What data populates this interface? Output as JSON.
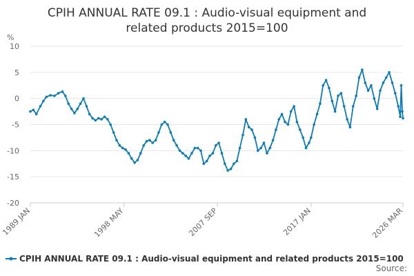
{
  "chart_data": {
    "type": "line",
    "title_lines": [
      "CPIH ANNUAL RATE 09.1 : Audio-visual equipment and",
      "related products 2015=100"
    ],
    "ylabel": "%",
    "ylim": [
      -20,
      10
    ],
    "y_ticks": [
      10,
      5,
      0,
      -5,
      -10,
      -15,
      -20
    ],
    "x_range": [
      "1989 JAN",
      "2026 MAR"
    ],
    "x_ticks": [
      {
        "label": "1989 JAN",
        "year": 1989.0
      },
      {
        "label": "1998 MAY",
        "year": 1998.33
      },
      {
        "label": "2007 SEP",
        "year": 2007.67
      },
      {
        "label": "2017 JAN",
        "year": 2017.0
      },
      {
        "label": "2026 MAR",
        "year": 2026.17
      }
    ],
    "grid": true,
    "legend_position": "bottom",
    "series": [
      {
        "name": "CPIH ANNUAL RATE 09.1 : Audio-visual equipment and related products 2015=100",
        "color": "#0b7cb8",
        "points": [
          [
            1989.0,
            -2.5
          ],
          [
            1989.3,
            -2.2
          ],
          [
            1989.6,
            -3.0
          ],
          [
            1990.0,
            -1.5
          ],
          [
            1990.3,
            -0.5
          ],
          [
            1990.6,
            0.3
          ],
          [
            1991.0,
            0.6
          ],
          [
            1991.4,
            0.5
          ],
          [
            1991.8,
            1.0
          ],
          [
            1992.2,
            1.3
          ],
          [
            1992.5,
            0.5
          ],
          [
            1992.8,
            -1.0
          ],
          [
            1993.1,
            -2.0
          ],
          [
            1993.4,
            -2.8
          ],
          [
            1993.7,
            -2.0
          ],
          [
            1994.0,
            -1.0
          ],
          [
            1994.3,
            0.0
          ],
          [
            1994.6,
            -1.5
          ],
          [
            1994.9,
            -3.0
          ],
          [
            1995.2,
            -3.8
          ],
          [
            1995.5,
            -4.2
          ],
          [
            1995.8,
            -3.8
          ],
          [
            1996.1,
            -4.0
          ],
          [
            1996.4,
            -3.5
          ],
          [
            1996.7,
            -4.0
          ],
          [
            1997.0,
            -5.0
          ],
          [
            1997.3,
            -6.5
          ],
          [
            1997.6,
            -8.0
          ],
          [
            1997.9,
            -9.0
          ],
          [
            1998.2,
            -9.5
          ],
          [
            1998.5,
            -9.8
          ],
          [
            1998.8,
            -10.5
          ],
          [
            1999.1,
            -11.5
          ],
          [
            1999.4,
            -12.3
          ],
          [
            1999.7,
            -11.8
          ],
          [
            2000.0,
            -10.5
          ],
          [
            2000.3,
            -9.0
          ],
          [
            2000.6,
            -8.2
          ],
          [
            2000.9,
            -8.0
          ],
          [
            2001.2,
            -8.5
          ],
          [
            2001.5,
            -8.0
          ],
          [
            2001.8,
            -6.5
          ],
          [
            2002.1,
            -5.0
          ],
          [
            2002.4,
            -4.5
          ],
          [
            2002.7,
            -5.0
          ],
          [
            2003.0,
            -6.5
          ],
          [
            2003.3,
            -8.0
          ],
          [
            2003.6,
            -9.0
          ],
          [
            2003.9,
            -10.0
          ],
          [
            2004.2,
            -10.5
          ],
          [
            2004.5,
            -11.0
          ],
          [
            2004.8,
            -11.5
          ],
          [
            2005.1,
            -10.5
          ],
          [
            2005.4,
            -9.5
          ],
          [
            2005.7,
            -9.5
          ],
          [
            2006.0,
            -10.0
          ],
          [
            2006.3,
            -12.5
          ],
          [
            2006.6,
            -12.0
          ],
          [
            2006.9,
            -11.0
          ],
          [
            2007.2,
            -10.5
          ],
          [
            2007.5,
            -9.0
          ],
          [
            2007.8,
            -8.5
          ],
          [
            2008.1,
            -10.5
          ],
          [
            2008.4,
            -12.5
          ],
          [
            2008.7,
            -13.8
          ],
          [
            2009.0,
            -13.5
          ],
          [
            2009.3,
            -12.5
          ],
          [
            2009.6,
            -12.0
          ],
          [
            2009.9,
            -9.5
          ],
          [
            2010.2,
            -7.0
          ],
          [
            2010.5,
            -4.0
          ],
          [
            2010.8,
            -5.5
          ],
          [
            2011.1,
            -6.0
          ],
          [
            2011.4,
            -7.5
          ],
          [
            2011.7,
            -10.0
          ],
          [
            2012.0,
            -9.5
          ],
          [
            2012.3,
            -8.5
          ],
          [
            2012.6,
            -10.5
          ],
          [
            2012.9,
            -9.5
          ],
          [
            2013.2,
            -8.0
          ],
          [
            2013.5,
            -6.0
          ],
          [
            2013.8,
            -4.0
          ],
          [
            2014.1,
            -3.0
          ],
          [
            2014.4,
            -4.5
          ],
          [
            2014.7,
            -5.0
          ],
          [
            2015.0,
            -2.5
          ],
          [
            2015.3,
            -1.5
          ],
          [
            2015.6,
            -4.5
          ],
          [
            2015.9,
            -6.0
          ],
          [
            2016.2,
            -7.5
          ],
          [
            2016.5,
            -9.5
          ],
          [
            2016.8,
            -8.5
          ],
          [
            2017.0,
            -7.5
          ],
          [
            2017.3,
            -5.0
          ],
          [
            2017.6,
            -3.0
          ],
          [
            2017.9,
            -1.0
          ],
          [
            2018.2,
            2.5
          ],
          [
            2018.5,
            3.5
          ],
          [
            2018.8,
            2.0
          ],
          [
            2019.1,
            -0.5
          ],
          [
            2019.4,
            -2.5
          ],
          [
            2019.7,
            0.5
          ],
          [
            2020.0,
            1.0
          ],
          [
            2020.3,
            -1.5
          ],
          [
            2020.6,
            -4.0
          ],
          [
            2020.9,
            -5.5
          ],
          [
            2021.2,
            -1.5
          ],
          [
            2021.5,
            0.5
          ],
          [
            2021.8,
            4.0
          ],
          [
            2022.1,
            5.5
          ],
          [
            2022.4,
            3.0
          ],
          [
            2022.7,
            1.5
          ],
          [
            2023.0,
            2.5
          ],
          [
            2023.3,
            0.0
          ],
          [
            2023.6,
            -2.0
          ],
          [
            2023.9,
            1.5
          ],
          [
            2024.2,
            3.0
          ],
          [
            2024.5,
            4.0
          ],
          [
            2024.8,
            5.0
          ],
          [
            2025.1,
            3.0
          ],
          [
            2025.4,
            1.0
          ],
          [
            2025.7,
            -1.5
          ],
          [
            2025.9,
            -3.5
          ],
          [
            2026.0,
            2.5
          ],
          [
            2026.1,
            -2.5
          ],
          [
            2026.17,
            -3.8
          ]
        ]
      }
    ]
  },
  "legend": {
    "label": "CPIH ANNUAL RATE 09.1 : Audio-visual equipment and related products 2015=100"
  },
  "source": {
    "label": "Source:"
  }
}
